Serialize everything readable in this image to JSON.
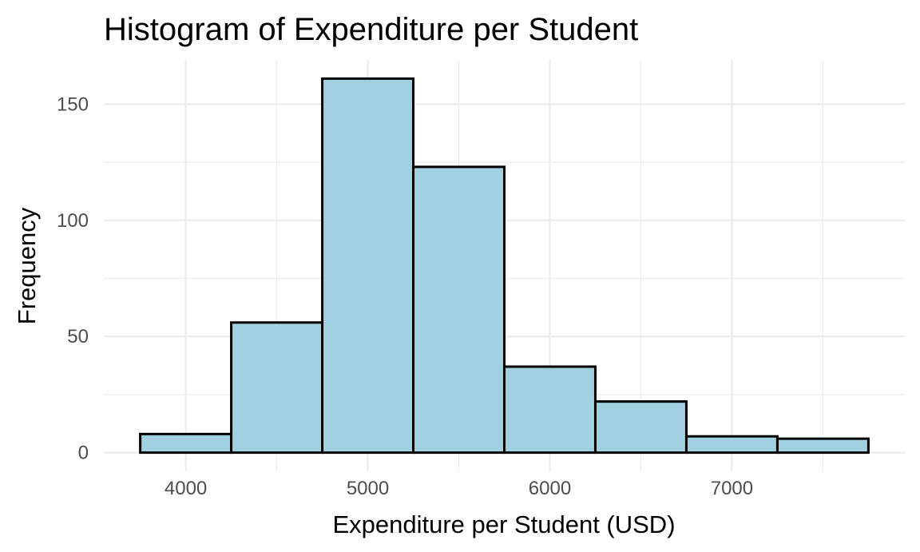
{
  "chart_data": {
    "type": "bar",
    "title": "Histogram of Expenditure per Student",
    "xlabel": "Expenditure per Student (USD)",
    "ylabel": "Frequency",
    "bins": [
      {
        "x0": 3750,
        "x1": 4250,
        "count": 8
      },
      {
        "x0": 4250,
        "x1": 4750,
        "count": 56
      },
      {
        "x0": 4750,
        "x1": 5250,
        "count": 161
      },
      {
        "x0": 5250,
        "x1": 5750,
        "count": 123
      },
      {
        "x0": 5750,
        "x1": 6250,
        "count": 37
      },
      {
        "x0": 6250,
        "x1": 6750,
        "count": 22
      },
      {
        "x0": 6750,
        "x1": 7250,
        "count": 7
      },
      {
        "x0": 7250,
        "x1": 7750,
        "count": 6
      }
    ],
    "xlim": [
      3550,
      7950
    ],
    "ylim": [
      -8.05,
      169.05
    ],
    "x_ticks": [
      4000,
      5000,
      6000,
      7000
    ],
    "x_minor_ticks": [
      4500,
      5500,
      6500,
      7500
    ],
    "y_ticks": [
      0,
      50,
      100,
      150
    ],
    "y_minor_ticks": [
      25,
      75,
      125
    ],
    "grid": true,
    "legend": "none",
    "colors": {
      "bar_fill": "#a1d0e0",
      "bar_outline": "#000000",
      "grid": "#ebebeb"
    }
  }
}
